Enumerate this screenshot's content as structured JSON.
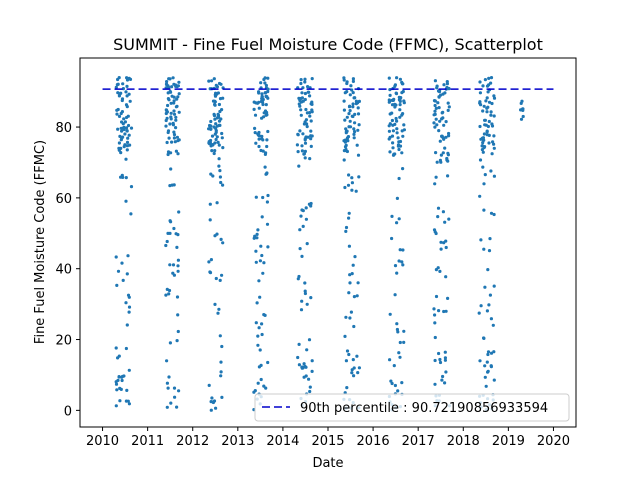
{
  "chart_data": {
    "type": "scatter",
    "title": "SUMMIT - Fine Fuel Moisture Code (FFMC), Scatterplot",
    "xlabel": "Date",
    "ylabel": "Fine Fuel Moisture Code (FFMC)",
    "xlim": [
      2009.5,
      2020.5
    ],
    "ylim": [
      -4.7,
      99.5
    ],
    "x_ticks": [
      "2010",
      "2011",
      "2012",
      "2013",
      "2014",
      "2015",
      "2016",
      "2017",
      "2018",
      "2019",
      "2020"
    ],
    "y_ticks": [
      "0",
      "20",
      "40",
      "60",
      "80"
    ],
    "grid": false,
    "legend_position": "lower-right",
    "point_color": "#1f77b4",
    "percentile_line": {
      "label": "90th percentile : 90.72190856933594",
      "value": 90.72190856933594,
      "color": "#0000cc",
      "style": "dashed"
    },
    "clusters": [
      {
        "season": "2010",
        "x_range": [
          2010.3,
          2010.65
        ]
      },
      {
        "season": "2011",
        "x_range": [
          2011.4,
          2011.7
        ]
      },
      {
        "season": "2012",
        "x_range": [
          2012.35,
          2012.68
        ]
      },
      {
        "season": "2013",
        "x_range": [
          2013.35,
          2013.68
        ]
      },
      {
        "season": "2014",
        "x_range": [
          2014.32,
          2014.65
        ]
      },
      {
        "season": "2015",
        "x_range": [
          2015.35,
          2015.7
        ]
      },
      {
        "season": "2016",
        "x_range": [
          2016.35,
          2016.7
        ]
      },
      {
        "season": "2017",
        "x_range": [
          2017.35,
          2017.7
        ]
      },
      {
        "season": "2018",
        "x_range": [
          2018.35,
          2018.7
        ]
      },
      {
        "season": "2019",
        "x_range": [
          2019.25,
          2019.35
        ]
      }
    ]
  }
}
